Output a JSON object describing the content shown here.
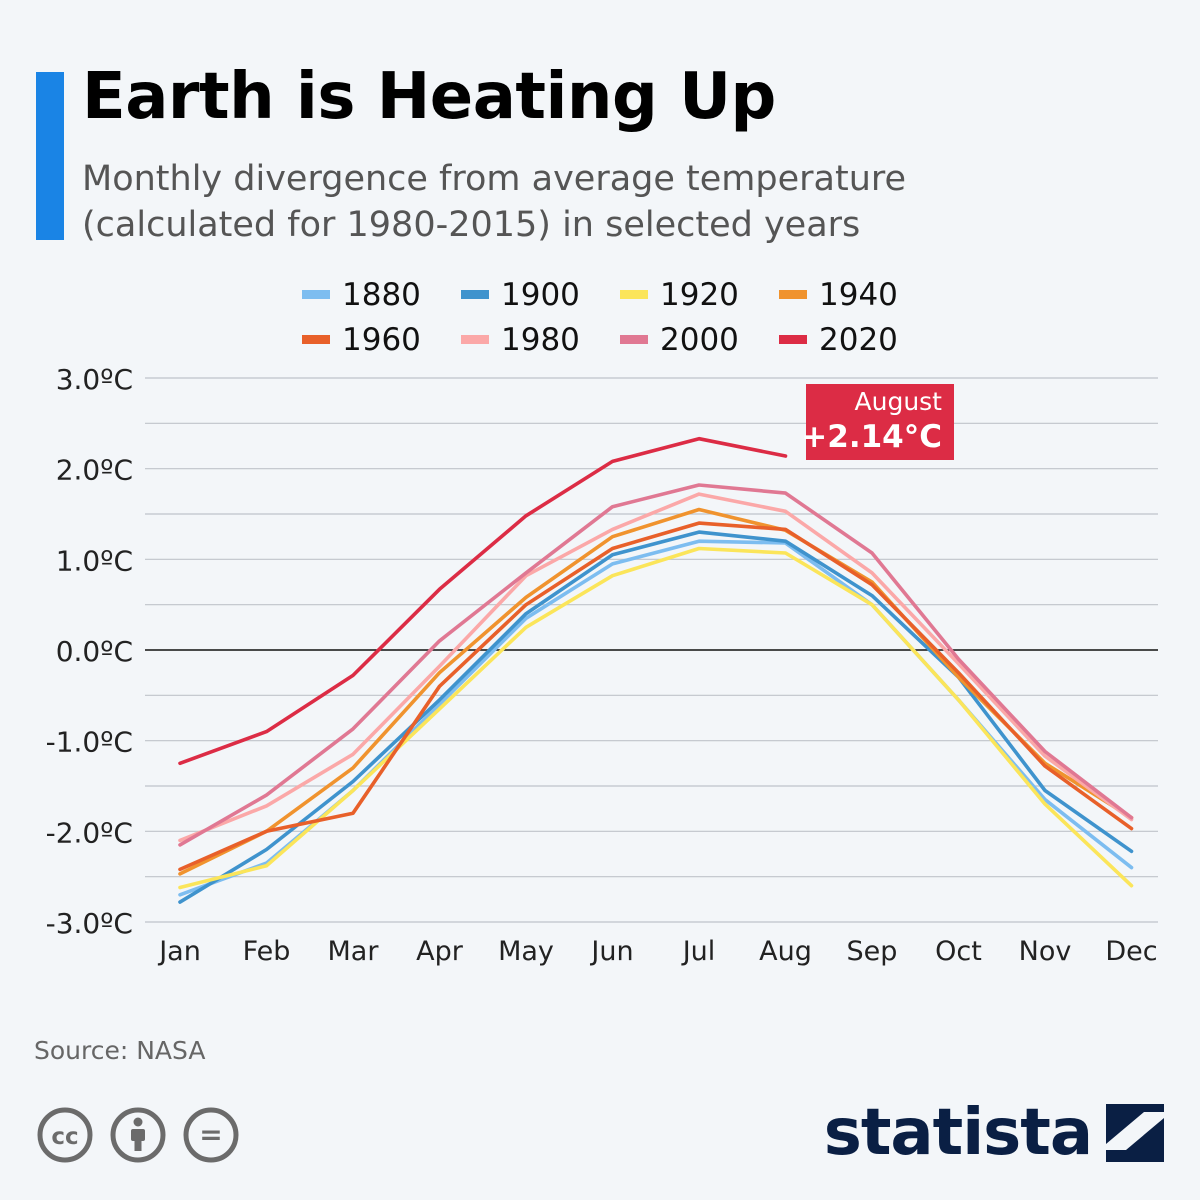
{
  "header": {
    "title": "Earth is Heating Up",
    "subtitle_line1": "Monthly divergence from average temperature",
    "subtitle_line2": "(calculated for 1980-2015) in selected years"
  },
  "colors": {
    "accent": "#1a84e5",
    "brand": "#0a1f44"
  },
  "chart_data": {
    "type": "line",
    "categories": [
      "Jan",
      "Feb",
      "Mar",
      "Apr",
      "May",
      "Jun",
      "Jul",
      "Aug",
      "Sep",
      "Oct",
      "Nov",
      "Dec"
    ],
    "ylim": [
      -3,
      3
    ],
    "yticks": [
      3,
      2,
      1,
      0,
      -1,
      -2,
      -3
    ],
    "ytick_labels": [
      "3.0ºC",
      "2.0ºC",
      "1.0ºC",
      "0.0ºC",
      "-1.0ºC",
      "-2.0ºC",
      "-3.0ºC"
    ],
    "grid": true,
    "legend_position": "top-center",
    "series": [
      {
        "name": "1880",
        "color": "#7dbdf0",
        "values": [
          -2.7,
          -2.35,
          -1.55,
          -0.6,
          0.35,
          0.95,
          1.2,
          1.18,
          0.5,
          -0.55,
          -1.65,
          -2.4
        ]
      },
      {
        "name": "1900",
        "color": "#3f93cd",
        "values": [
          -2.78,
          -2.2,
          -1.45,
          -0.55,
          0.4,
          1.05,
          1.3,
          1.2,
          0.6,
          -0.3,
          -1.55,
          -2.22
        ]
      },
      {
        "name": "1920",
        "color": "#fbe55a",
        "values": [
          -2.62,
          -2.38,
          -1.55,
          -0.65,
          0.25,
          0.82,
          1.12,
          1.07,
          0.5,
          -0.55,
          -1.7,
          -2.6
        ]
      },
      {
        "name": "1940",
        "color": "#f0932e",
        "values": [
          -2.47,
          -2.0,
          -1.3,
          -0.25,
          0.58,
          1.25,
          1.55,
          1.32,
          0.75,
          -0.3,
          -1.25,
          -1.85
        ]
      },
      {
        "name": "1960",
        "color": "#e8602a",
        "values": [
          -2.42,
          -2.0,
          -1.8,
          -0.4,
          0.5,
          1.12,
          1.4,
          1.33,
          0.72,
          -0.25,
          -1.28,
          -1.97
        ]
      },
      {
        "name": "1980",
        "color": "#fba8a8",
        "values": [
          -2.1,
          -1.72,
          -1.15,
          -0.18,
          0.82,
          1.33,
          1.72,
          1.53,
          0.85,
          -0.15,
          -1.17,
          -1.87
        ]
      },
      {
        "name": "2000",
        "color": "#e07893",
        "values": [
          -2.15,
          -1.6,
          -0.87,
          0.1,
          0.85,
          1.58,
          1.82,
          1.73,
          1.07,
          -0.1,
          -1.12,
          -1.85
        ]
      },
      {
        "name": "2020",
        "color": "#dc2c45",
        "values": [
          -1.25,
          -0.9,
          -0.28,
          0.67,
          1.48,
          2.08,
          2.33,
          2.14,
          null,
          null,
          null,
          null
        ]
      }
    ],
    "annotation": {
      "month": "Aug",
      "series": "2020",
      "value": 2.14,
      "line1": "August",
      "line2": "+2.14°C",
      "color": "#dc2c45"
    }
  },
  "footer": {
    "source": "Source: NASA",
    "brand_name": "statista",
    "license_icons": [
      "cc-icon",
      "attribution-icon",
      "no-derivatives-icon"
    ],
    "cc_label": "cc",
    "nd_label": "="
  }
}
